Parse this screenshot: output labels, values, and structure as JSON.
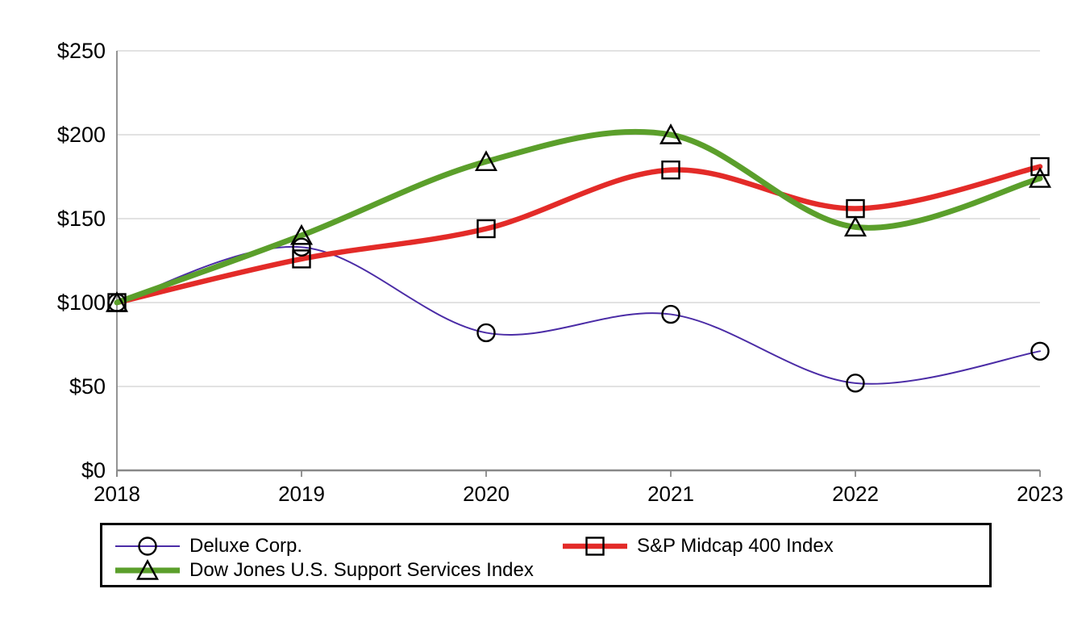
{
  "chart_data": {
    "type": "line",
    "title": "",
    "xlabel": "",
    "ylabel": "",
    "categories": [
      "2018",
      "2019",
      "2020",
      "2021",
      "2022",
      "2023"
    ],
    "y_ticks": [
      {
        "label": "$0",
        "value": 0
      },
      {
        "label": "$50",
        "value": 50
      },
      {
        "label": "$100",
        "value": 100
      },
      {
        "label": "$150",
        "value": 150
      },
      {
        "label": "$200",
        "value": 200
      },
      {
        "label": "$250",
        "value": 250
      }
    ],
    "ylim": [
      0,
      250
    ],
    "grid": "horizontal",
    "legend_position": "bottom-box",
    "smoothed_lines": true,
    "axis_color": "#888888",
    "grid_color": "#d9d9d9",
    "marker_color": "#000000",
    "series": [
      {
        "name": "Deluxe Corp.",
        "marker": "circle",
        "color": "#4b2ca6",
        "line_width": 2,
        "values": [
          100,
          133,
          82,
          93,
          52,
          71
        ]
      },
      {
        "name": "S&P Midcap 400 Index",
        "marker": "square",
        "color": "#e32b28",
        "line_width": 6.5,
        "values": [
          100,
          126,
          144,
          179,
          156,
          181
        ]
      },
      {
        "name": "Dow Jones U.S. Support Services Index",
        "marker": "triangle",
        "color": "#5b9f2b",
        "line_width": 7,
        "values": [
          100,
          140,
          184,
          200,
          145,
          174
        ]
      }
    ]
  }
}
